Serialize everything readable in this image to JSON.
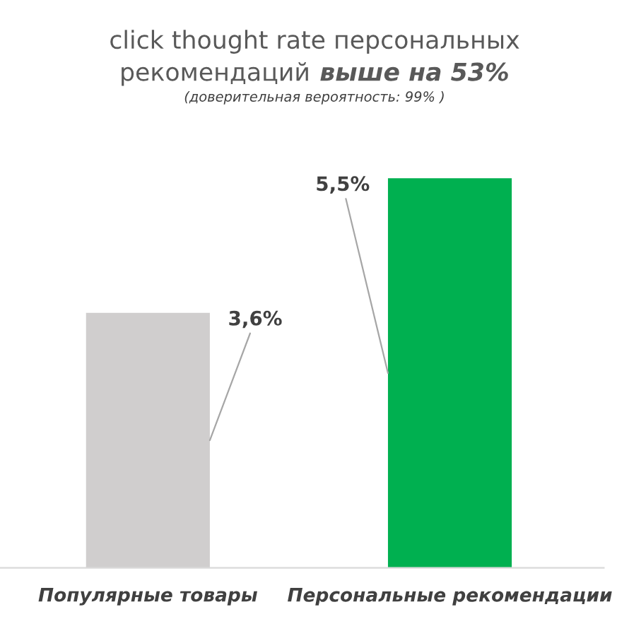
{
  "chart_data": {
    "type": "bar",
    "title": "click thought rate персональных рекомендаций",
    "subtitle": "выше на 53%",
    "annotations": [
      "(доверительная вероятность: 99% )"
    ],
    "categories": [
      "Популярные товары",
      "Персональные рекомендации"
    ],
    "values": [
      3.6,
      5.5
    ],
    "colors": [
      "#d0cece",
      "#00b050"
    ],
    "value_labels": [
      "3,6%",
      "5,5%"
    ],
    "grid": false,
    "legend": false
  }
}
